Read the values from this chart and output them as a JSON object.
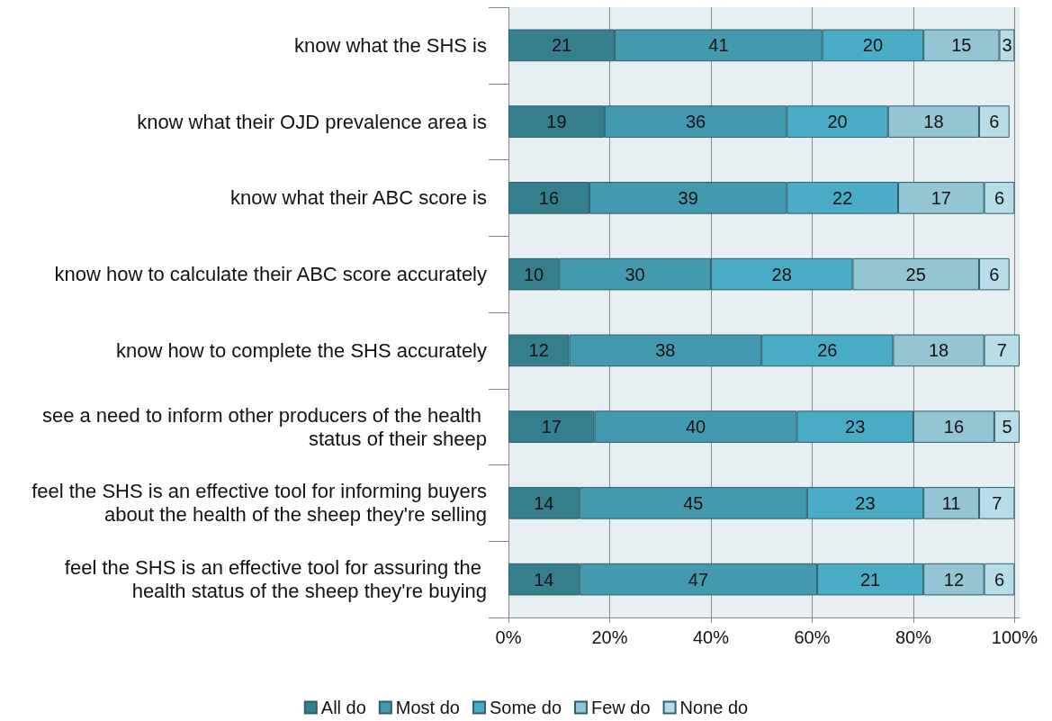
{
  "chart_data": {
    "type": "bar",
    "orientation": "horizontal",
    "stacked": true,
    "data_labels": true,
    "grid": "x",
    "legend": "bottom",
    "categories": [
      "know what the SHS is",
      "know what their OJD prevalence area is",
      "know what their ABC score is",
      "know how to calculate their ABC score accurately",
      "know how to complete the SHS accurately",
      "see a need to inform other producers of the health status of their sheep",
      "feel the SHS is an effective tool for informing buyers about the health of the sheep they're selling",
      "feel the SHS is an effective tool for assuring the health status of the sheep they're buying"
    ],
    "series": [
      {
        "name": "All do",
        "color": "#367f8f",
        "values": [
          21,
          19,
          16,
          10,
          12,
          17,
          14,
          14
        ]
      },
      {
        "name": "Most do",
        "color": "#4299b0",
        "values": [
          41,
          36,
          39,
          30,
          38,
          40,
          45,
          47
        ]
      },
      {
        "name": "Some do",
        "color": "#4bacc6",
        "values": [
          20,
          20,
          22,
          28,
          26,
          23,
          23,
          21
        ]
      },
      {
        "name": "Few do",
        "color": "#93c5d4",
        "values": [
          15,
          18,
          17,
          25,
          18,
          16,
          11,
          12
        ]
      },
      {
        "name": "None do",
        "color": "#b7dde8",
        "values": [
          3,
          6,
          6,
          6,
          7,
          5,
          7,
          6
        ]
      }
    ],
    "xlim": [
      0,
      101
    ],
    "xticks": [
      {
        "value": 0,
        "label": "0%"
      },
      {
        "value": 20,
        "label": "20%"
      },
      {
        "value": 40,
        "label": "40%"
      },
      {
        "value": 60,
        "label": "60%"
      },
      {
        "value": 80,
        "label": "80%"
      },
      {
        "value": 100,
        "label": "100%"
      }
    ]
  }
}
